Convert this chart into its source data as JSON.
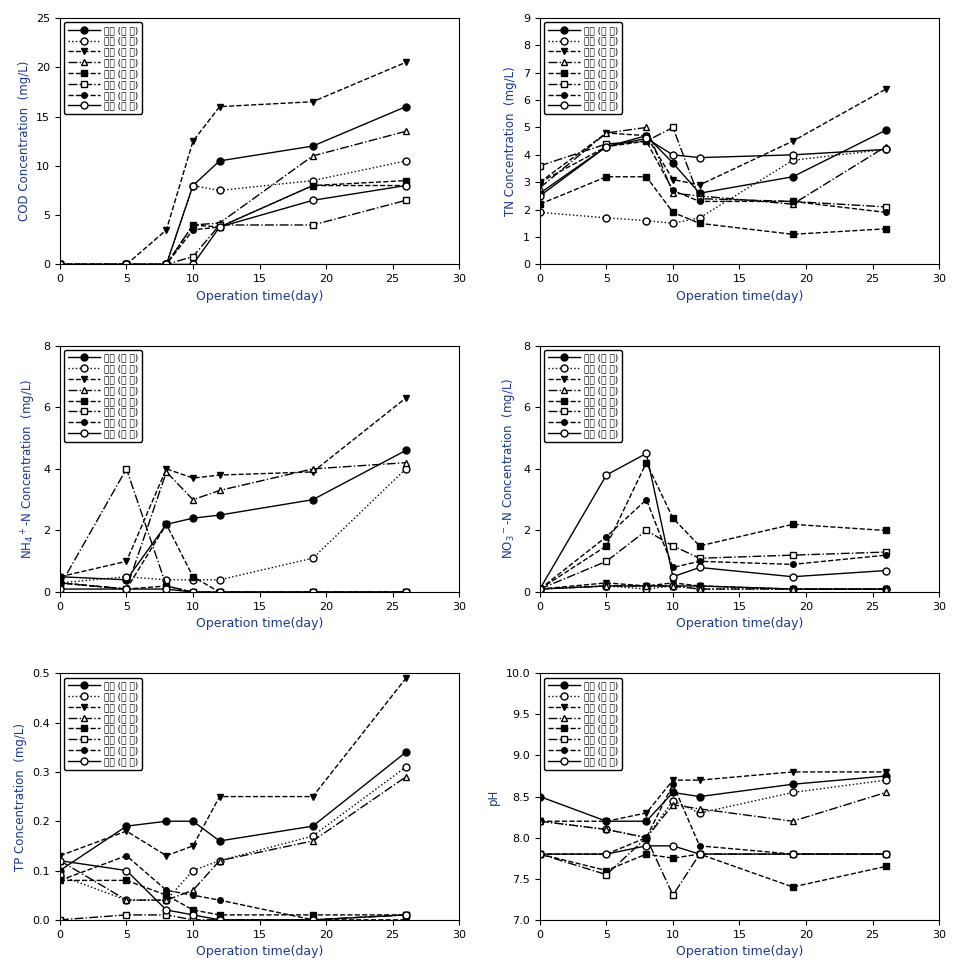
{
  "x": [
    0,
    5,
    8,
    10,
    12,
    19,
    26
  ],
  "series_labels": [
    "우측 (혜 기)",
    "좌측 (혜 기)",
    "중앙 (혜 기)",
    "제방 (혜 기)",
    "우측 (호 기)",
    "좌측 (호 기)",
    "중앙 (호 기)",
    "제방 (호 기)"
  ],
  "COD": {
    "ylabel": "COD Concentration  (mg/L)",
    "ylim": [
      0,
      25
    ],
    "yticks": [
      0,
      5,
      10,
      15,
      20,
      25
    ],
    "series": [
      [
        0,
        0,
        0,
        8.0,
        10.5,
        12.0,
        16.0
      ],
      [
        0,
        0,
        0,
        8.0,
        7.5,
        8.5,
        10.5
      ],
      [
        0,
        0,
        3.5,
        12.5,
        16.0,
        16.5,
        20.5
      ],
      [
        0,
        0,
        0,
        4.0,
        4.2,
        11.0,
        13.5
      ],
      [
        0,
        0,
        0,
        4.0,
        3.8,
        8.0,
        8.5
      ],
      [
        0,
        0,
        0,
        0.8,
        4.0,
        4.0,
        6.5
      ],
      [
        0,
        0,
        0,
        3.5,
        3.8,
        8.0,
        8.0
      ],
      [
        0,
        0,
        0,
        0.0,
        3.8,
        6.5,
        8.0
      ]
    ]
  },
  "TN": {
    "ylabel": "TN Concentration  (mg/L)",
    "ylim": [
      0,
      9
    ],
    "yticks": [
      0,
      1,
      2,
      3,
      4,
      5,
      6,
      7,
      8,
      9
    ],
    "series": [
      [
        2.6,
        4.3,
        4.7,
        3.7,
        2.6,
        3.2,
        4.9
      ],
      [
        1.9,
        1.7,
        1.6,
        1.5,
        1.7,
        3.8,
        4.2
      ],
      [
        3.0,
        4.8,
        4.7,
        3.1,
        2.9,
        4.5,
        6.4
      ],
      [
        2.8,
        4.8,
        5.0,
        2.6,
        2.5,
        2.2,
        4.3
      ],
      [
        2.2,
        3.2,
        3.2,
        1.9,
        1.5,
        1.1,
        1.3
      ],
      [
        3.6,
        4.4,
        4.5,
        5.0,
        2.4,
        2.3,
        2.1
      ],
      [
        3.0,
        4.3,
        4.5,
        2.7,
        2.3,
        2.3,
        1.9
      ],
      [
        2.5,
        4.3,
        4.6,
        4.0,
        3.9,
        4.0,
        4.2
      ]
    ]
  },
  "NH4": {
    "ylabel": "NH$_4$$^+$-N Concentration  (mg/L)",
    "ylim": [
      0,
      8
    ],
    "yticks": [
      0,
      2,
      4,
      6,
      8
    ],
    "series": [
      [
        0.5,
        0.4,
        2.2,
        2.4,
        2.5,
        3.0,
        4.6
      ],
      [
        0.3,
        0.5,
        0.4,
        0.4,
        0.4,
        1.1,
        4.0
      ],
      [
        0.5,
        1.0,
        4.0,
        3.7,
        3.8,
        3.9,
        6.3
      ],
      [
        0.3,
        0.1,
        3.9,
        3.0,
        3.3,
        4.0,
        4.2
      ],
      [
        0.3,
        0.1,
        2.2,
        0.5,
        0.0,
        0.0,
        0.0
      ],
      [
        0.2,
        4.0,
        0.2,
        0.0,
        0.0,
        0.0,
        0.0
      ],
      [
        0.3,
        0.1,
        0.2,
        0.0,
        0.0,
        0.0,
        0.0
      ],
      [
        0.1,
        0.1,
        0.1,
        0.0,
        0.0,
        0.0,
        0.0
      ]
    ]
  },
  "NO3": {
    "ylabel": "NO$_3$$^-$-N Concentration  (mg/L)",
    "ylim": [
      0,
      8
    ],
    "yticks": [
      0,
      2,
      4,
      6,
      8
    ],
    "series": [
      [
        0.1,
        0.2,
        0.2,
        0.2,
        0.2,
        0.1,
        0.1
      ],
      [
        0.1,
        0.2,
        0.1,
        0.2,
        0.1,
        0.1,
        0.1
      ],
      [
        0.1,
        0.3,
        0.2,
        0.3,
        0.2,
        0.1,
        0.1
      ],
      [
        0.1,
        0.2,
        0.2,
        0.2,
        0.1,
        0.1,
        0.1
      ],
      [
        0.1,
        1.5,
        4.2,
        2.4,
        1.5,
        2.2,
        2.0
      ],
      [
        0.1,
        1.0,
        2.0,
        1.5,
        1.1,
        1.2,
        1.3
      ],
      [
        0.1,
        1.8,
        3.0,
        0.8,
        1.0,
        0.9,
        1.2
      ],
      [
        0.1,
        3.8,
        4.5,
        0.5,
        0.8,
        0.5,
        0.7
      ]
    ]
  },
  "TP": {
    "ylabel": "TP Concentration  (mg/L)",
    "ylim": [
      0,
      0.5
    ],
    "yticks": [
      0.0,
      0.1,
      0.2,
      0.3,
      0.4,
      0.5
    ],
    "series": [
      [
        0.1,
        0.19,
        0.2,
        0.2,
        0.16,
        0.19,
        0.34
      ],
      [
        0.09,
        0.04,
        0.04,
        0.1,
        0.12,
        0.17,
        0.31
      ],
      [
        0.13,
        0.18,
        0.13,
        0.15,
        0.25,
        0.25,
        0.49
      ],
      [
        0.12,
        0.04,
        0.04,
        0.06,
        0.12,
        0.16,
        0.29
      ],
      [
        0.08,
        0.08,
        0.05,
        0.02,
        0.01,
        0.01,
        0.01
      ],
      [
        0.0,
        0.01,
        0.01,
        0.0,
        0.0,
        0.0,
        0.01
      ],
      [
        0.08,
        0.13,
        0.06,
        0.05,
        0.04,
        0.0,
        0.0
      ],
      [
        0.12,
        0.1,
        0.02,
        0.01,
        0.0,
        0.0,
        0.01
      ]
    ]
  },
  "pH": {
    "ylabel": "pH",
    "ylim": [
      7.0,
      10.0
    ],
    "yticks": [
      7.0,
      7.5,
      8.0,
      8.5,
      9.0,
      9.5,
      10.0
    ],
    "series": [
      [
        8.5,
        8.2,
        8.2,
        8.55,
        8.5,
        8.65,
        8.75
      ],
      [
        8.2,
        8.1,
        8.0,
        8.45,
        8.3,
        8.55,
        8.7
      ],
      [
        8.2,
        8.2,
        8.3,
        8.7,
        8.7,
        8.8,
        8.8
      ],
      [
        8.2,
        8.1,
        8.0,
        8.4,
        8.35,
        8.2,
        8.55
      ],
      [
        7.8,
        7.6,
        7.8,
        7.75,
        7.8,
        7.4,
        7.65
      ],
      [
        7.8,
        7.55,
        8.0,
        7.3,
        7.8,
        7.8,
        7.8
      ],
      [
        7.8,
        7.8,
        8.0,
        8.65,
        7.9,
        7.8,
        7.8
      ],
      [
        7.8,
        7.8,
        7.9,
        7.9,
        7.8,
        7.8,
        7.8
      ]
    ]
  },
  "line_styles": [
    {
      "ls": "-",
      "marker": "o",
      "mfc": "black",
      "mec": "black",
      "ms": 5,
      "lw": 1.0
    },
    {
      "ls": ":",
      "marker": "o",
      "mfc": "white",
      "mec": "black",
      "ms": 5,
      "lw": 1.0
    },
    {
      "ls": "--",
      "marker": "v",
      "mfc": "black",
      "mec": "black",
      "ms": 5,
      "lw": 1.0
    },
    {
      "ls": "-.",
      "marker": "^",
      "mfc": "white",
      "mec": "black",
      "ms": 5,
      "lw": 1.0
    },
    {
      "ls": "--",
      "marker": "s",
      "mfc": "black",
      "mec": "black",
      "ms": 5,
      "lw": 1.0
    },
    {
      "ls": "-.",
      "marker": "s",
      "mfc": "white",
      "mec": "black",
      "ms": 5,
      "lw": 1.0
    },
    {
      "ls": "--",
      "marker": "o",
      "mfc": "black",
      "mec": "black",
      "ms": 4,
      "lw": 1.0
    },
    {
      "ls": "-",
      "marker": "o",
      "mfc": "white",
      "mec": "black",
      "ms": 5,
      "lw": 1.0
    }
  ],
  "xlabel": "Operation time(day)",
  "xlim": [
    0,
    30
  ],
  "xticks": [
    0,
    5,
    10,
    15,
    20,
    25,
    30
  ],
  "label_color": "#1a3a8f",
  "axis_color": "#1a3a8f"
}
